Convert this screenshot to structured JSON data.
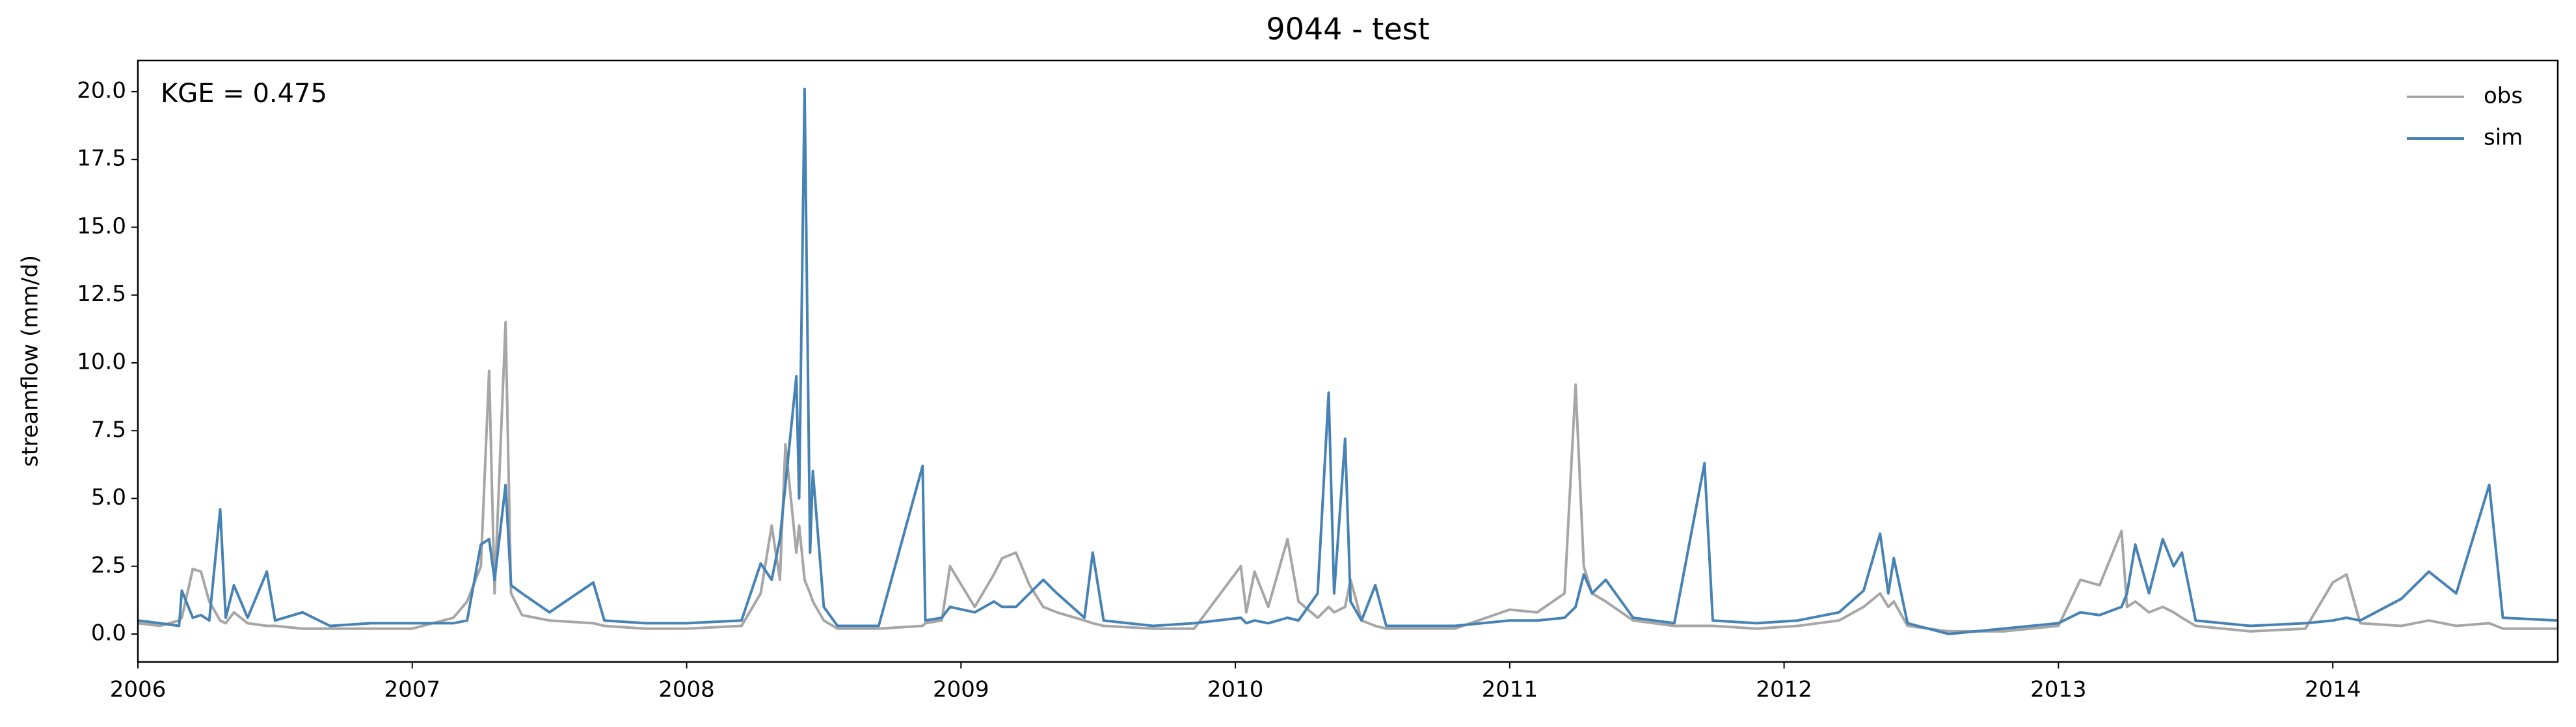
{
  "chart_data": {
    "type": "line",
    "title": "9044 - test",
    "ylabel": "streamflow (mm/d)",
    "annotation": "KGE = 0.475",
    "legend": "upper right",
    "grid": false,
    "xlim": [
      2006,
      2014.82
    ],
    "xticks": [
      2006,
      2007,
      2008,
      2009,
      2010,
      2011,
      2012,
      2013,
      2014
    ],
    "ylim": [
      -1.03,
      21.15
    ],
    "yticks": [
      {
        "value": 0,
        "label": "0.0"
      },
      {
        "value": 2.5,
        "label": "2.5"
      },
      {
        "value": 5,
        "label": "5.0"
      },
      {
        "value": 7.5,
        "label": "7.5"
      },
      {
        "value": 10,
        "label": "10.0"
      },
      {
        "value": 12.5,
        "label": "12.5"
      },
      {
        "value": 15,
        "label": "15.0"
      },
      {
        "value": 17.5,
        "label": "17.5"
      },
      {
        "value": 20,
        "label": "20.0"
      }
    ],
    "x": [
      2006.0,
      2006.08,
      2006.15,
      2006.16,
      2006.2,
      2006.23,
      2006.26,
      2006.3,
      2006.32,
      2006.35,
      2006.4,
      2006.47,
      2006.5,
      2006.6,
      2006.7,
      2006.85,
      2007.0,
      2007.15,
      2007.2,
      2007.25,
      2007.28,
      2007.3,
      2007.34,
      2007.36,
      2007.4,
      2007.5,
      2007.66,
      2007.7,
      2007.85,
      2008.0,
      2008.2,
      2008.27,
      2008.31,
      2008.34,
      2008.36,
      2008.4,
      2008.41,
      2008.43,
      2008.45,
      2008.46,
      2008.5,
      2008.55,
      2008.7,
      2008.86,
      2008.87,
      2008.93,
      2008.96,
      2009.05,
      2009.12,
      2009.15,
      2009.2,
      2009.25,
      2009.3,
      2009.35,
      2009.45,
      2009.48,
      2009.52,
      2009.7,
      2009.85,
      2010.02,
      2010.04,
      2010.07,
      2010.12,
      2010.19,
      2010.23,
      2010.3,
      2010.34,
      2010.36,
      2010.4,
      2010.42,
      2010.46,
      2010.51,
      2010.55,
      2010.8,
      2011.0,
      2011.1,
      2011.2,
      2011.24,
      2011.27,
      2011.3,
      2011.35,
      2011.45,
      2011.6,
      2011.71,
      2011.74,
      2011.9,
      2012.05,
      2012.2,
      2012.29,
      2012.35,
      2012.38,
      2012.4,
      2012.45,
      2012.6,
      2012.8,
      2013.0,
      2013.08,
      2013.15,
      2013.23,
      2013.25,
      2013.28,
      2013.33,
      2013.38,
      2013.42,
      2013.45,
      2013.5,
      2013.7,
      2013.9,
      2014.0,
      2014.05,
      2014.1,
      2014.25,
      2014.35,
      2014.45,
      2014.57,
      2014.62,
      2014.82
    ],
    "series": [
      {
        "name": "obs",
        "color": "#a6a6a6",
        "values": [
          0.4,
          0.3,
          0.5,
          0.6,
          2.4,
          2.3,
          1.2,
          0.5,
          0.4,
          0.8,
          0.4,
          0.3,
          0.3,
          0.2,
          0.2,
          0.2,
          0.2,
          0.6,
          1.2,
          2.5,
          9.7,
          1.5,
          11.5,
          1.5,
          0.7,
          0.5,
          0.4,
          0.3,
          0.2,
          0.2,
          0.3,
          1.5,
          4.0,
          2.0,
          7.0,
          3.0,
          4.0,
          2.0,
          1.5,
          1.2,
          0.5,
          0.2,
          0.2,
          0.3,
          0.4,
          0.5,
          2.5,
          1.0,
          2.2,
          2.8,
          3.0,
          1.8,
          1.0,
          0.8,
          0.5,
          0.4,
          0.3,
          0.2,
          0.2,
          2.5,
          0.8,
          2.3,
          1.0,
          3.5,
          1.2,
          0.6,
          1.0,
          0.8,
          1.0,
          2.0,
          0.5,
          0.3,
          0.2,
          0.2,
          0.9,
          0.8,
          1.5,
          9.2,
          2.5,
          1.5,
          1.2,
          0.5,
          0.3,
          0.3,
          0.3,
          0.2,
          0.3,
          0.5,
          1.0,
          1.5,
          1.0,
          1.2,
          0.3,
          0.1,
          0.1,
          0.3,
          2.0,
          1.8,
          3.8,
          1.0,
          1.2,
          0.8,
          1.0,
          0.8,
          0.6,
          0.3,
          0.1,
          0.2,
          1.9,
          2.2,
          0.4,
          0.3,
          0.5,
          0.3,
          0.4,
          0.2,
          0.2
        ]
      },
      {
        "name": "sim",
        "color": "#4682b4",
        "values": [
          0.5,
          0.4,
          0.3,
          1.6,
          0.6,
          0.7,
          0.5,
          4.6,
          0.6,
          1.8,
          0.6,
          2.3,
          0.5,
          0.8,
          0.3,
          0.4,
          0.4,
          0.4,
          0.5,
          3.3,
          3.5,
          2.0,
          5.5,
          1.8,
          1.5,
          0.8,
          1.9,
          0.5,
          0.4,
          0.4,
          0.5,
          2.6,
          2.0,
          3.5,
          5.5,
          9.5,
          5.0,
          20.1,
          3.0,
          6.0,
          1.0,
          0.3,
          0.3,
          6.2,
          0.5,
          0.6,
          1.0,
          0.8,
          1.2,
          1.0,
          1.0,
          1.5,
          2.0,
          1.5,
          0.6,
          3.0,
          0.5,
          0.3,
          0.4,
          0.6,
          0.4,
          0.5,
          0.4,
          0.6,
          0.5,
          1.5,
          8.9,
          1.5,
          7.2,
          1.2,
          0.5,
          1.8,
          0.3,
          0.3,
          0.5,
          0.5,
          0.6,
          1.0,
          2.2,
          1.5,
          2.0,
          0.6,
          0.4,
          6.3,
          0.5,
          0.4,
          0.5,
          0.8,
          1.6,
          3.7,
          1.5,
          2.8,
          0.4,
          0.0,
          0.2,
          0.4,
          0.8,
          0.7,
          1.0,
          1.5,
          3.3,
          1.5,
          3.5,
          2.5,
          3.0,
          0.5,
          0.3,
          0.4,
          0.5,
          0.6,
          0.5,
          1.3,
          2.3,
          1.5,
          5.5,
          0.6,
          0.5
        ]
      }
    ]
  }
}
